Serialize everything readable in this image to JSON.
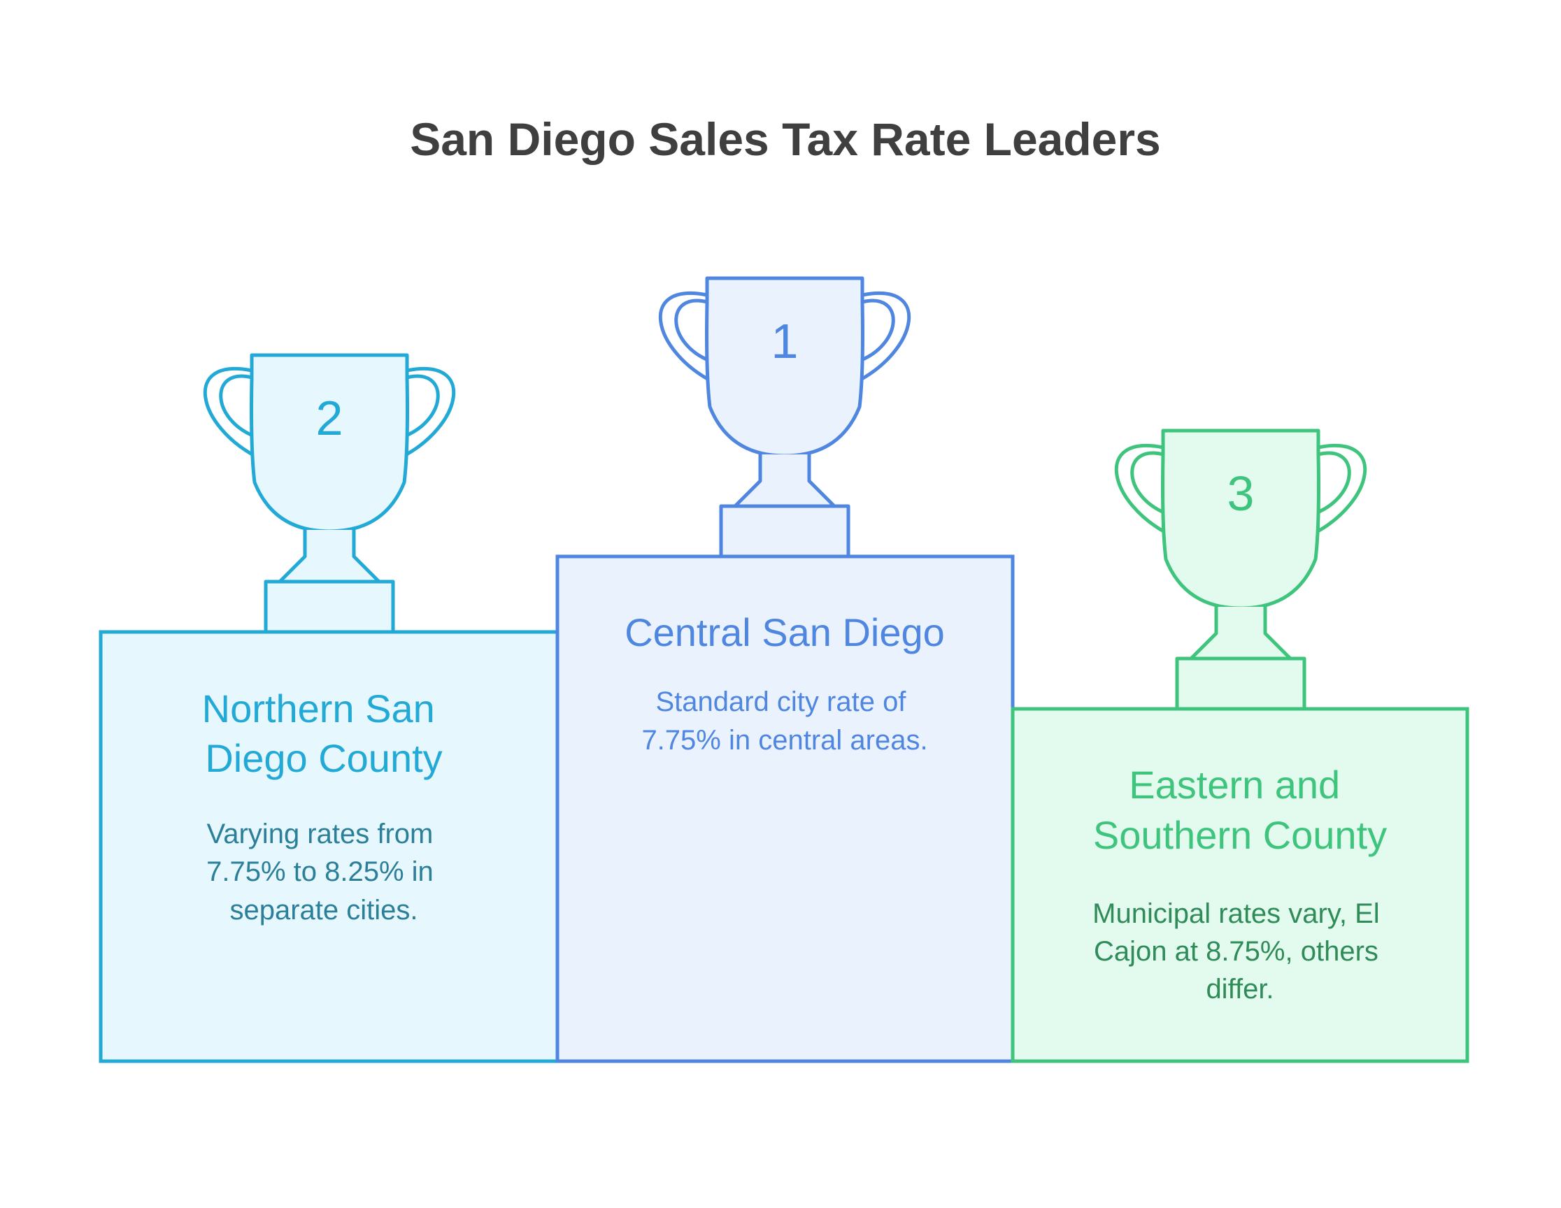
{
  "title": "San Diego Sales Tax Rate Leaders",
  "colors": {
    "title": "#3f3f3f",
    "second": "#22a9d6",
    "second_fill": "#e6f7fd",
    "second_text": "#2b7f99",
    "first": "#4f86e0",
    "first_fill": "#eaf2fe",
    "third": "#3ec47c",
    "third_fill": "#e3fbee",
    "third_text": "#2f8b58"
  },
  "podium": [
    {
      "place": "2",
      "heading_lines": [
        "Northern San",
        "Diego County"
      ],
      "description_lines": [
        "Varying rates from",
        "7.75% to 8.25% in",
        "separate cities."
      ]
    },
    {
      "place": "1",
      "heading_lines": [
        "Central San Diego"
      ],
      "description_lines": [
        "Standard city rate of",
        "7.75% in central areas."
      ]
    },
    {
      "place": "3",
      "heading_lines": [
        "Eastern and",
        "Southern County"
      ],
      "description_lines": [
        "Municipal rates vary, El",
        "Cajon at 8.75%, others",
        "differ."
      ]
    }
  ]
}
